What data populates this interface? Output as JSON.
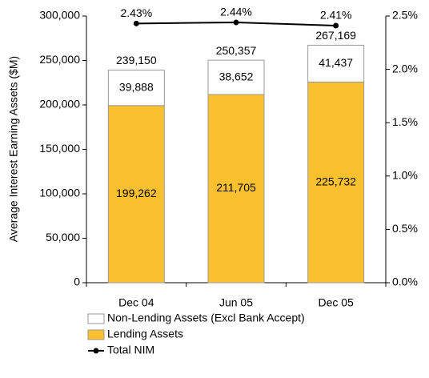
{
  "chart_data": {
    "type": "bar",
    "stacked": true,
    "y_label": "Average Interest Earning Assets ($M)",
    "categories": [
      "Dec 04",
      "Jun 05",
      "Dec 05"
    ],
    "series": [
      {
        "name": "Non-Lending Assets (Excl Bank Accept)",
        "color": "#ffffff",
        "values": [
          39888,
          38652,
          41437
        ],
        "value_labels": [
          "39,888",
          "38,652",
          "41,437"
        ]
      },
      {
        "name": "Lending Assets",
        "color": "#fbc02d",
        "values": [
          199262,
          211705,
          225732
        ],
        "value_labels": [
          "199,262",
          "211,705",
          "225,732"
        ]
      },
      {
        "name": "Total NIM",
        "color": "#000000",
        "type": "line",
        "axis": "y2",
        "values": [
          2.43,
          2.44,
          2.41
        ],
        "value_labels": [
          "2.43%",
          "2.44%",
          "2.41%"
        ]
      }
    ],
    "totals": [
      239150,
      250357,
      267169
    ],
    "total_labels": [
      "239,150",
      "250,357",
      "267,169"
    ],
    "ylim": [
      0,
      300000
    ],
    "yticks": [
      0,
      {
        "value": 50000,
        "label": "50,000"
      },
      {
        "value": 100000,
        "label": "100,000"
      },
      {
        "value": 150000,
        "label": "150,000"
      },
      {
        "value": 200000,
        "label": "200,000"
      },
      {
        "value": 250000,
        "label": "250,000"
      },
      {
        "value": 300000,
        "label": "300,000"
      }
    ],
    "y2lim": [
      0,
      2.5
    ],
    "y2ticks": [
      {
        "value": 0,
        "label": "0.0%"
      },
      {
        "value": 0.5,
        "label": "0.5%"
      },
      {
        "value": 1.0,
        "label": "1.0%"
      },
      {
        "value": 1.5,
        "label": "1.5%"
      },
      {
        "value": 2.0,
        "label": "2.0%"
      },
      {
        "value": 2.5,
        "label": "2.5%"
      }
    ],
    "grid": false,
    "legend": "bottom"
  }
}
